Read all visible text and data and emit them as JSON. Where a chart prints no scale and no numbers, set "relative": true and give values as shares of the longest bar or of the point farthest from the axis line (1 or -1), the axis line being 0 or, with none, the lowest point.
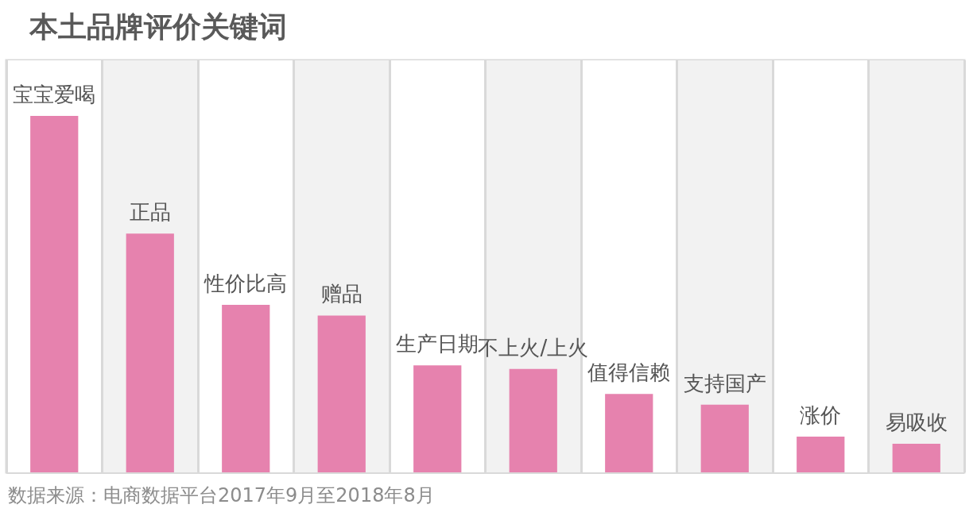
{
  "chart_data": {
    "type": "bar",
    "title": "本土品牌评价关键词",
    "categories": [
      "宝宝爱喝",
      "正品",
      "性价比高",
      "赠品",
      "生产日期",
      "不上火/上火",
      "值得信赖",
      "支持国产",
      "涨价",
      "易吸收"
    ],
    "values": [
      1,
      0.67,
      0.47,
      0.44,
      0.3,
      0.29,
      0.22,
      0.19,
      0.1,
      0.08
    ],
    "color": "#e682ae",
    "relative": true,
    "grid": true,
    "tick_labels": "x",
    "annotations": [
      "数据来源：电商数据平台2017年9月至2018年8月"
    ]
  }
}
